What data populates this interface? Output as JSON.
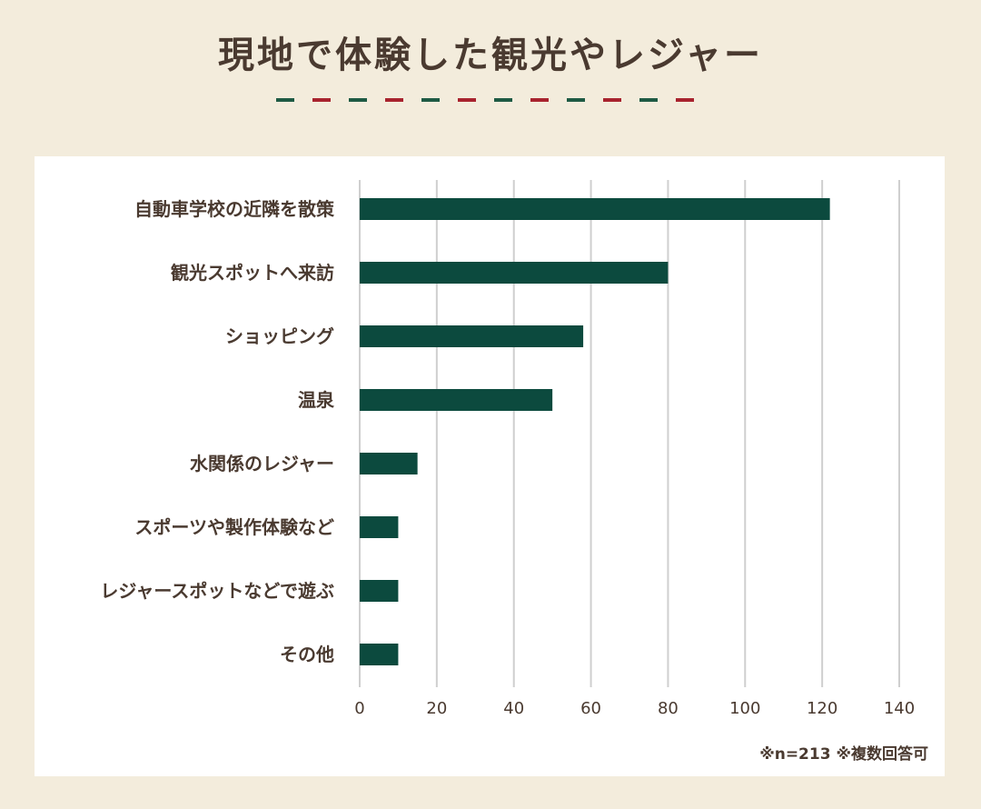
{
  "title": "現地で体験した観光やレジャー",
  "footnote": "※n=213 ※複数回答可",
  "colors": {
    "bar": "#0c4a3e",
    "text": "#4a3a30",
    "grid": "#cfcfcf",
    "dash_green": "#1e5a44",
    "dash_red": "#a8232e"
  },
  "chart_data": {
    "type": "bar",
    "orientation": "horizontal",
    "title": "現地で体験した観光やレジャー",
    "categories": [
      "自動車学校の近隣を散策",
      "観光スポットへ来訪",
      "ショッピング",
      "温泉",
      "水関係のレジャー",
      "スポーツや製作体験など",
      "レジャースポットなどで遊ぶ",
      "その他"
    ],
    "values": [
      122,
      80,
      58,
      50,
      15,
      10,
      10,
      10
    ],
    "xlim": [
      0,
      140
    ],
    "xticks": [
      0,
      20,
      40,
      60,
      80,
      100,
      120,
      140
    ],
    "grid": true,
    "xlabel": "",
    "ylabel": ""
  }
}
